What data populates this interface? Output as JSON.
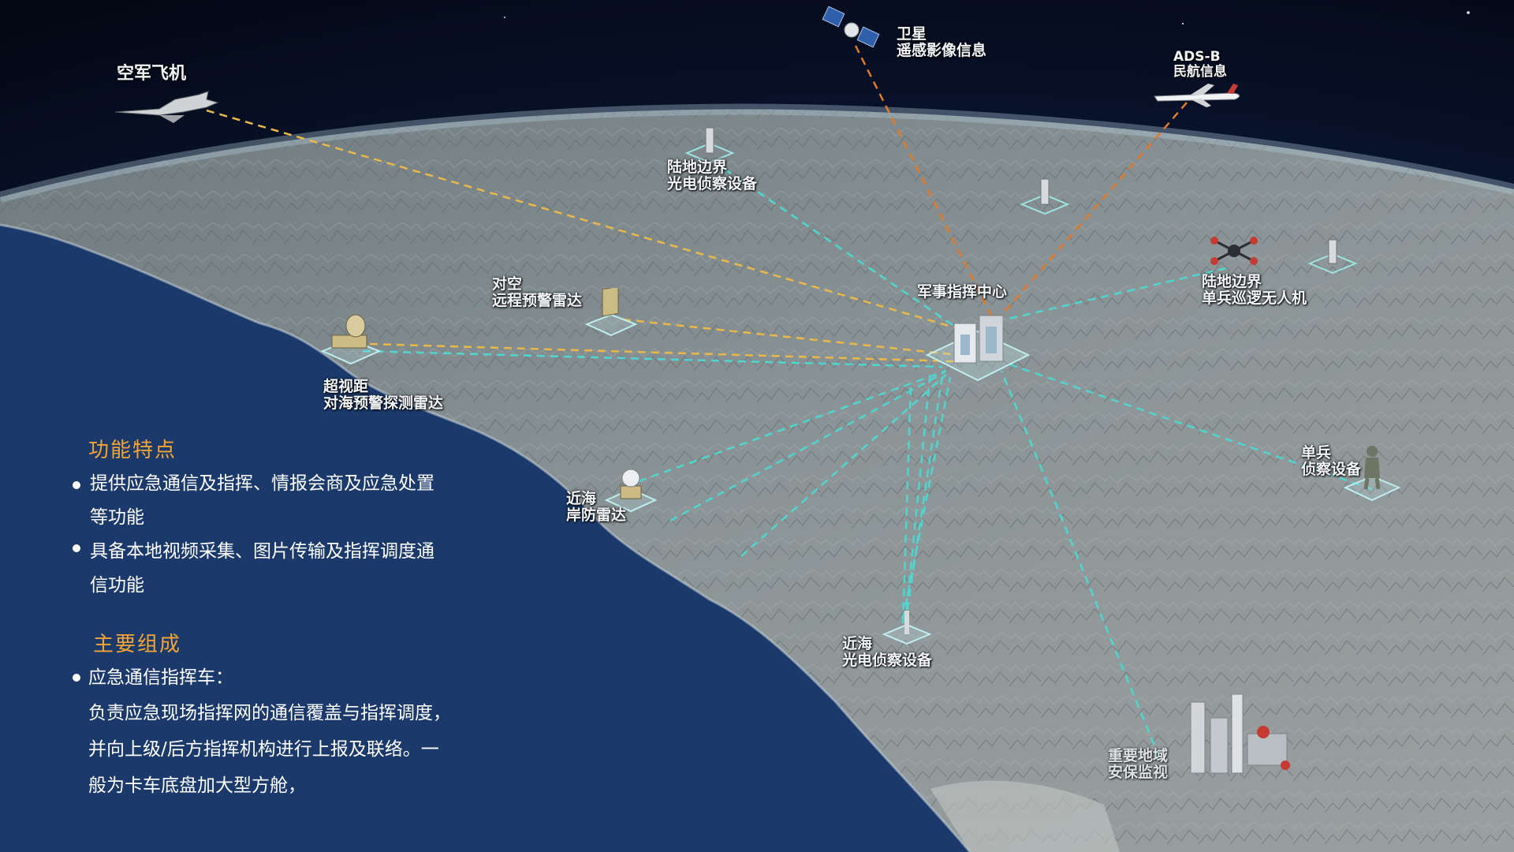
{
  "labels": {
    "air_force": "空军飞机",
    "satellite": [
      "卫星",
      "遥感影像信息"
    ],
    "adsb": [
      "ADS-B",
      "民航信息"
    ],
    "land_border_eo": [
      "陆地边界",
      "光电侦察设备"
    ],
    "air_radar": [
      "对空",
      "远程预警雷达"
    ],
    "command_center": "军事指挥中心",
    "land_border_uav": [
      "陆地边界",
      "单兵巡逻无人机"
    ],
    "otr_radar": [
      "超视距",
      "对海预警探测雷达"
    ],
    "coastal_radar": [
      "近海",
      "岸防雷达"
    ],
    "soldier": [
      "单兵",
      "侦察设备"
    ],
    "coastal_eo": [
      "近海",
      "光电侦察设备"
    ],
    "key_area": [
      "重要地域",
      "安保监视"
    ]
  },
  "panel": {
    "features_title": "功能特点",
    "features": [
      [
        "提供应急通信及指挥、情报会商及应急处置",
        "等功能"
      ],
      [
        "具备本地视频采集、图片传输及指挥调度通",
        "信功能"
      ]
    ],
    "composition_title": "主要组成",
    "composition_item": "应急通信指挥车：",
    "composition_desc": [
      "负责应急现场指挥网的通信覆盖与指挥调度，",
      "并向上级/后方指挥机构进行上报及联络。一",
      "般为卡车底盘加大型方舱，"
    ]
  },
  "colors": {
    "accent_title": "#f3a436",
    "link_yellow": "#e8b84a",
    "link_orange": "#e07a2a",
    "link_cyan": "#4fd6d0",
    "ocean": "#1b3a6b"
  }
}
